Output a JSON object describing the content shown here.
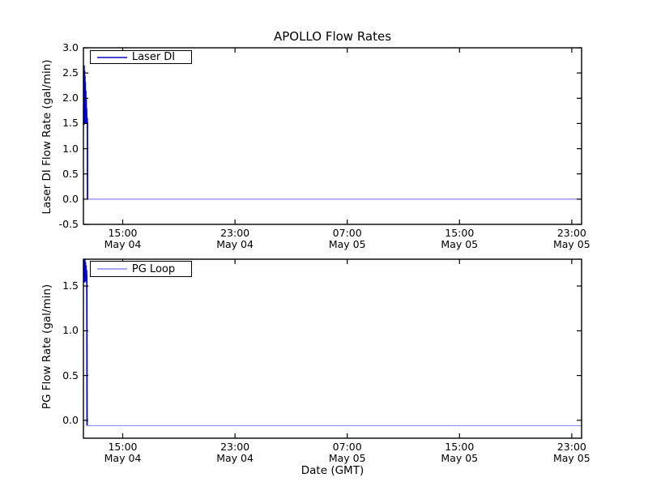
{
  "figure": {
    "title": "APOLLO Flow Rates",
    "xlabel": "Date (GMT)",
    "background_color": "#ffffff",
    "frame_color": "#000000",
    "line_color": "#0000dd",
    "tail_line_color": "#8a8aee"
  },
  "chart_data": [
    {
      "type": "line",
      "title": "APOLLO Flow Rates",
      "ylabel": "Laser DI Flow Rate (gal/min)",
      "legend_label": "Laser DI",
      "legend_position": "upper left",
      "legend_sample_color": "#4646d0",
      "grid": false,
      "xlim_hours": [
        0,
        35.5
      ],
      "ylim": [
        -0.5,
        3.0
      ],
      "yticks": [
        {
          "v": 3.0,
          "label": "3.0"
        },
        {
          "v": 2.5,
          "label": "2.5"
        },
        {
          "v": 2.0,
          "label": "2.0"
        },
        {
          "v": 1.5,
          "label": "1.5"
        },
        {
          "v": 1.0,
          "label": "1.0"
        },
        {
          "v": 0.5,
          "label": "0.5"
        },
        {
          "v": 0.0,
          "label": "0.0"
        },
        {
          "v": -0.5,
          "label": "-0.5"
        }
      ],
      "xticks": [
        {
          "hour": 2.8,
          "time": "15:00",
          "date": "May 04"
        },
        {
          "hour": 10.8,
          "time": "23:00",
          "date": "May 04"
        },
        {
          "hour": 18.8,
          "time": "07:00",
          "date": "May 05"
        },
        {
          "hour": 26.8,
          "time": "15:00",
          "date": "May 05"
        },
        {
          "hour": 34.8,
          "time": "23:00",
          "date": "May 05"
        }
      ],
      "series": [
        {
          "name": "Laser DI",
          "segments": [
            {
              "color": "#0000dd",
              "width": 1.8,
              "x": [
                0.0,
                0.015,
                0.03,
                0.045,
                0.06,
                0.075,
                0.09,
                0.105,
                0.12,
                0.135,
                0.15,
                0.165,
                0.18,
                0.195,
                0.21,
                0.225,
                0.24,
                0.26,
                0.28,
                0.29
              ],
              "y": [
                1.5,
                2.42,
                1.55,
                2.65,
                1.48,
                2.55,
                1.58,
                2.45,
                1.5,
                2.32,
                1.54,
                2.15,
                1.5,
                1.98,
                1.55,
                1.8,
                1.5,
                1.62,
                1.5,
                0.0
              ]
            },
            {
              "color": "#8a8aee",
              "width": 1.3,
              "x": [
                0.29,
                35.5
              ],
              "y": [
                0.0,
                0.0
              ]
            }
          ]
        }
      ]
    },
    {
      "type": "line",
      "ylabel": "PG Flow Rate (gal/min)",
      "xlabel": "Date (GMT)",
      "legend_label": "PG Loop",
      "legend_position": "upper left",
      "legend_sample_color": "#a2aaf2",
      "grid": false,
      "xlim_hours": [
        0,
        35.5
      ],
      "ylim": [
        -0.2,
        1.8
      ],
      "yticks": [
        {
          "v": 1.5,
          "label": "1.5"
        },
        {
          "v": 1.0,
          "label": "1.0"
        },
        {
          "v": 0.5,
          "label": "0.5"
        },
        {
          "v": 0.0,
          "label": "0.0"
        }
      ],
      "xticks": [
        {
          "hour": 2.8,
          "time": "15:00",
          "date": "May 04"
        },
        {
          "hour": 10.8,
          "time": "23:00",
          "date": "May 04"
        },
        {
          "hour": 18.8,
          "time": "07:00",
          "date": "May 05"
        },
        {
          "hour": 26.8,
          "time": "15:00",
          "date": "May 05"
        },
        {
          "hour": 34.8,
          "time": "23:00",
          "date": "May 05"
        }
      ],
      "series": [
        {
          "name": "PG Loop",
          "segments": [
            {
              "color": "#0000dd",
              "width": 1.8,
              "x": [
                0.0,
                0.02,
                0.04,
                0.06,
                0.08,
                0.1,
                0.12,
                0.14,
                0.16,
                0.18,
                0.2,
                0.22,
                0.24,
                0.26
              ],
              "y": [
                1.62,
                1.85,
                1.56,
                1.82,
                1.54,
                1.8,
                1.57,
                1.77,
                1.55,
                1.73,
                1.58,
                1.68,
                1.6,
                -0.06
              ]
            },
            {
              "color": "#9595f0",
              "width": 1.3,
              "x": [
                0.26,
                35.5
              ],
              "y": [
                -0.06,
                -0.06
              ]
            }
          ]
        }
      ]
    }
  ]
}
